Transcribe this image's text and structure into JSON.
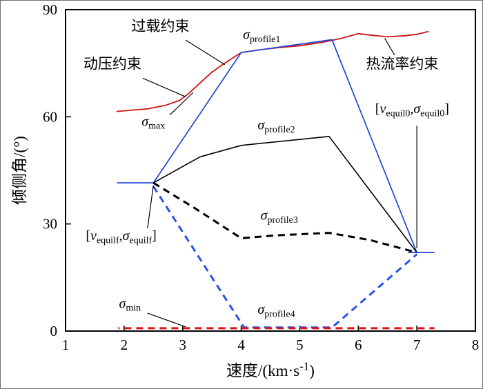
{
  "figure": {
    "background": "#ffffff",
    "border_color": "#6e6e6e"
  },
  "chart_data": {
    "type": "line",
    "title": "",
    "xlabel_segments": [
      {
        "t": "速度/(km·s"
      },
      {
        "t": "-1",
        "sup": true
      },
      {
        "t": ")"
      }
    ],
    "ylabel_segments": [
      {
        "t": "倾侧角/(°)"
      }
    ],
    "xlim": [
      1,
      8
    ],
    "ylim": [
      0,
      90
    ],
    "xticks": [
      1,
      2,
      3,
      4,
      5,
      6,
      7,
      8
    ],
    "yticks": [
      0,
      30,
      60,
      90
    ],
    "grid": false,
    "legend": "none",
    "colors": {
      "constraint_red": "#cc1212",
      "profile_blue": "#2442d6",
      "min_red": "#e01212",
      "black": "#000000"
    },
    "series": [
      {
        "name": "constraint-boundary-curve",
        "color": "#cc1212",
        "width": 1.8,
        "dash": null,
        "dashoffset": 0,
        "points": [
          [
            1.87,
            61.5
          ],
          [
            2.1,
            61.8
          ],
          [
            2.4,
            62.2
          ],
          [
            2.7,
            63.2
          ],
          [
            2.95,
            64.6
          ],
          [
            3.1,
            66.5
          ],
          [
            3.3,
            69.5
          ],
          [
            3.5,
            72.5
          ],
          [
            3.7,
            74.8
          ],
          [
            3.85,
            76.4
          ],
          [
            4.0,
            78
          ],
          [
            4.3,
            78.7
          ],
          [
            4.6,
            79.3
          ],
          [
            5.0,
            79.9
          ],
          [
            5.4,
            80.9
          ],
          [
            5.7,
            81.9
          ],
          [
            6.0,
            83.3
          ],
          [
            6.2,
            82.9
          ],
          [
            6.5,
            82.4
          ],
          [
            6.8,
            82.7
          ],
          [
            7.0,
            83.1
          ],
          [
            7.2,
            83.9
          ]
        ]
      },
      {
        "name": "profile1-line",
        "color": "#2442d6",
        "width": 1.7,
        "dash": null,
        "dashoffset": 0,
        "points": [
          [
            2.5,
            41.5
          ],
          [
            4.0,
            78
          ],
          [
            5.55,
            81.6
          ],
          [
            7.0,
            22
          ]
        ]
      },
      {
        "name": "profile2-line",
        "color": "#000000",
        "width": 1.6,
        "dash": null,
        "dashoffset": 0,
        "points": [
          [
            2.5,
            41.5
          ],
          [
            3.3,
            48.8
          ],
          [
            4.0,
            52
          ],
          [
            5.5,
            54.5
          ],
          [
            7.0,
            22
          ]
        ]
      },
      {
        "name": "profile3-line",
        "color": "#000000",
        "width": 3,
        "dash": "10 7",
        "dashoffset": 0,
        "points": [
          [
            2.5,
            41.5
          ],
          [
            3.2,
            34.5
          ],
          [
            4.0,
            26
          ],
          [
            4.6,
            26.8
          ],
          [
            5.5,
            27.5
          ],
          [
            6.2,
            25.5
          ],
          [
            7.0,
            22
          ]
        ]
      },
      {
        "name": "profile4-line",
        "color": "#2a52e6",
        "width": 3,
        "dash": "10 7",
        "dashoffset": 0,
        "points": [
          [
            2.5,
            40.5
          ],
          [
            4.05,
            1
          ],
          [
            5.55,
            1
          ],
          [
            7.0,
            21.5
          ]
        ]
      },
      {
        "name": "sigma-min-line",
        "color": "#e01212",
        "width": 3,
        "dash": "10 7",
        "dashoffset": 8,
        "points": [
          [
            1.9,
            0.8
          ],
          [
            7.3,
            0.8
          ]
        ]
      },
      {
        "name": "equilf-glide-segment",
        "color": "#2442d6",
        "width": 1.7,
        "dash": null,
        "dashoffset": 0,
        "points": [
          [
            1.88,
            41.5
          ],
          [
            2.5,
            41.5
          ]
        ]
      },
      {
        "name": "equil0-glide-segment",
        "color": "#2442d6",
        "width": 1.7,
        "dash": null,
        "dashoffset": 0,
        "points": [
          [
            6.85,
            22
          ],
          [
            7.3,
            22
          ]
        ]
      }
    ],
    "annotations": [
      {
        "name": "dynamic-pressure-constraint-label",
        "x": 1.8,
        "y": 73.5,
        "size": 21,
        "segments": [
          {
            "t": "动压约束"
          }
        ],
        "leader": {
          "x1": 2.32,
          "y1": 70.8,
          "x2": 3.05,
          "y2": 65.6
        }
      },
      {
        "name": "overload-constraint-label",
        "x": 2.62,
        "y": 84,
        "size": 21,
        "segments": [
          {
            "t": "过载约束"
          }
        ],
        "leader": {
          "x1": 3.05,
          "y1": 81.5,
          "x2": 3.72,
          "y2": 74.6
        }
      },
      {
        "name": "heat-flux-constraint-label",
        "x": 6.75,
        "y": 73.5,
        "size": 21,
        "segments": [
          {
            "t": "热流率约束"
          }
        ],
        "leader": {
          "x1": 6.62,
          "y1": 77.3,
          "x2": 6.45,
          "y2": 82.0
        }
      },
      {
        "name": "sigma-max-label",
        "x": 2.5,
        "y": 57.5,
        "size": 20,
        "segments": [
          {
            "t": "σ",
            "i": true
          },
          {
            "t": "max",
            "sub": true
          }
        ],
        "leader": {
          "x1": 2.78,
          "y1": 60.5,
          "x2": 3.18,
          "y2": 66.8
        }
      },
      {
        "name": "sigma-min-label",
        "x": 2.1,
        "y": 6.5,
        "size": 20,
        "segments": [
          {
            "t": "σ",
            "i": true
          },
          {
            "t": "min",
            "sub": true
          }
        ],
        "leader": {
          "x1": 2.4,
          "y1": 5.0,
          "x2": 3.05,
          "y2": 1.2
        }
      },
      {
        "name": "sigma-profile1-label",
        "x": 4.35,
        "y": 81.8,
        "size": 20,
        "segments": [
          {
            "t": "σ",
            "i": true
          },
          {
            "t": "profile1",
            "sub": true
          }
        ],
        "leader": null
      },
      {
        "name": "sigma-profile2-label",
        "x": 4.6,
        "y": 56.5,
        "size": 20,
        "segments": [
          {
            "t": "σ",
            "i": true
          },
          {
            "t": "profile2",
            "sub": true
          }
        ],
        "leader": null
      },
      {
        "name": "sigma-profile3-label",
        "x": 4.65,
        "y": 31.2,
        "size": 20,
        "segments": [
          {
            "t": "σ",
            "i": true
          },
          {
            "t": "profile3",
            "sub": true
          }
        ],
        "leader": null
      },
      {
        "name": "sigma-profile4-label",
        "x": 4.6,
        "y": 4.8,
        "size": 20,
        "segments": [
          {
            "t": "σ",
            "i": true
          },
          {
            "t": "profile4",
            "sub": true
          }
        ],
        "leader": null
      },
      {
        "name": "equilf-point-label",
        "x": 1.95,
        "y": 25.5,
        "size": 20,
        "segments": [
          {
            "t": "["
          },
          {
            "t": "v",
            "i": true
          },
          {
            "t": "equilf",
            "sub": true
          },
          {
            "t": ",σ",
            "i": true
          },
          {
            "t": "equilf",
            "sub": true
          },
          {
            "t": "]"
          }
        ],
        "leader": {
          "x1": 2.4,
          "y1": 28.8,
          "x2": 2.5,
          "y2": 40.8
        }
      },
      {
        "name": "equil0-point-label",
        "x": 6.92,
        "y": 61,
        "size": 20,
        "segments": [
          {
            "t": "["
          },
          {
            "t": "v",
            "i": true
          },
          {
            "t": "equil0",
            "sub": true
          },
          {
            "t": ",σ",
            "i": true
          },
          {
            "t": "equil0",
            "sub": true
          },
          {
            "t": "]"
          }
        ],
        "leader": {
          "x1": 7.0,
          "y1": 57.5,
          "x2": 7.0,
          "y2": 23.2
        }
      }
    ]
  }
}
